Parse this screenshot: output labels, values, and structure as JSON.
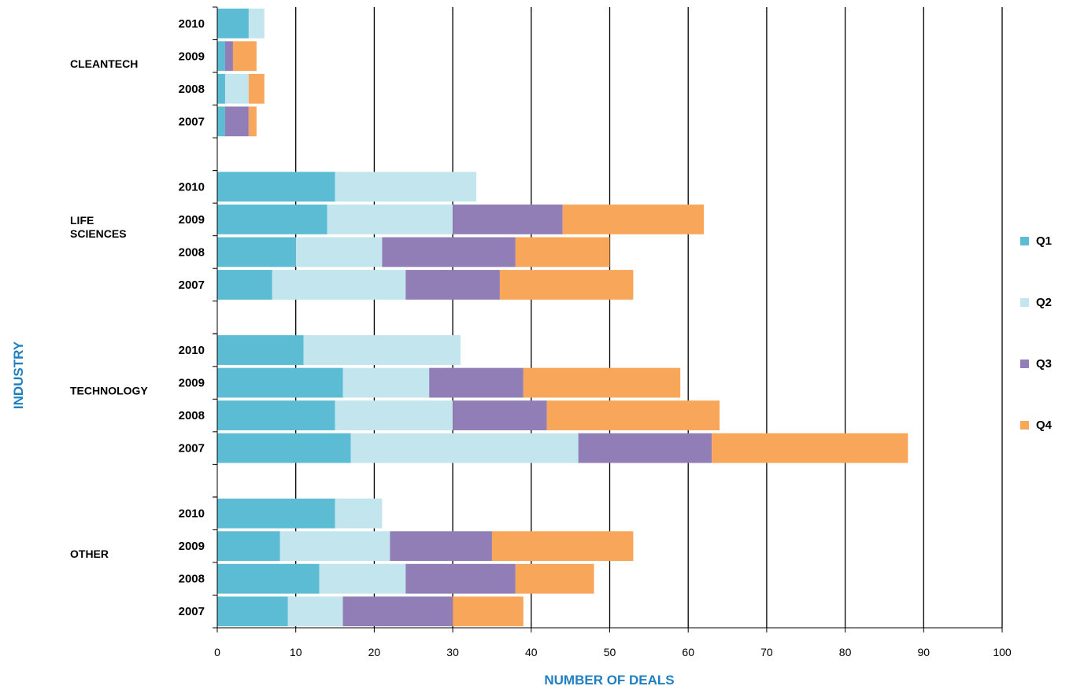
{
  "chart_data": {
    "type": "bar",
    "orientation": "horizontal",
    "stacked": true,
    "title": "",
    "xlabel": "NUMBER OF DEALS",
    "ylabel": "INDUSTRY",
    "xlim": [
      0,
      100
    ],
    "xticks": [
      0,
      10,
      20,
      30,
      40,
      50,
      60,
      70,
      80,
      90,
      100
    ],
    "grid": "vertical",
    "legend": "right",
    "colors": {
      "Q1": "#5bbcd3",
      "Q2": "#c3e5ed",
      "Q3": "#927eb6",
      "Q4": "#f8a75a",
      "axis_title": "#1f7fc0"
    },
    "series_names": [
      "Q1",
      "Q2",
      "Q3",
      "Q4"
    ],
    "groups": [
      {
        "name": "CLEANTECH",
        "rows": [
          {
            "year": "2010",
            "values": [
              4,
              2,
              0,
              0
            ]
          },
          {
            "year": "2009",
            "values": [
              1,
              0,
              1,
              3
            ]
          },
          {
            "year": "2008",
            "values": [
              1,
              3,
              0,
              2
            ]
          },
          {
            "year": "2007",
            "values": [
              1,
              0,
              3,
              1
            ]
          }
        ]
      },
      {
        "name": "LIFE SCIENCES",
        "rows": [
          {
            "year": "2010",
            "values": [
              15,
              18,
              0,
              0
            ]
          },
          {
            "year": "2009",
            "values": [
              14,
              16,
              14,
              18
            ]
          },
          {
            "year": "2008",
            "values": [
              10,
              11,
              17,
              12
            ]
          },
          {
            "year": "2007",
            "values": [
              7,
              17,
              12,
              17
            ]
          }
        ]
      },
      {
        "name": "TECHNOLOGY",
        "rows": [
          {
            "year": "2010",
            "values": [
              11,
              20,
              0,
              0
            ]
          },
          {
            "year": "2009",
            "values": [
              16,
              11,
              12,
              20
            ]
          },
          {
            "year": "2008",
            "values": [
              15,
              15,
              12,
              22
            ]
          },
          {
            "year": "2007",
            "values": [
              17,
              29,
              17,
              25
            ]
          }
        ]
      },
      {
        "name": "OTHER",
        "rows": [
          {
            "year": "2010",
            "values": [
              15,
              6,
              0,
              0
            ]
          },
          {
            "year": "2009",
            "values": [
              8,
              14,
              13,
              18
            ]
          },
          {
            "year": "2008",
            "values": [
              13,
              11,
              14,
              10
            ]
          },
          {
            "year": "2007",
            "values": [
              9,
              7,
              14,
              9
            ]
          }
        ]
      }
    ]
  }
}
